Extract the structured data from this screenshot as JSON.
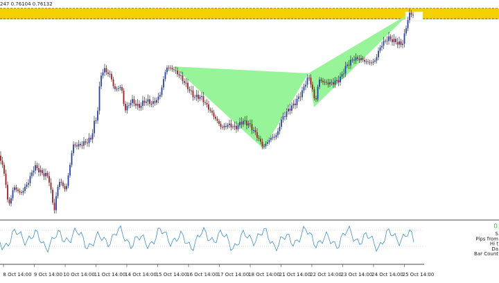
{
  "header": {
    "text": "247 0.76104 0.76132"
  },
  "x_axis": {
    "labels": [
      "8 Oct 14:00",
      "9 Oct 14:00",
      "10 Oct 14:00",
      "11 Oct 14:00",
      "14 Oct 14:00",
      "15 Oct 14:00",
      "16 Oct 14:00",
      "17 Oct 14:00",
      "18 Oct 14:00",
      "21 Oct 14:00",
      "22 Oct 14:00",
      "23 Oct 14:00",
      "24 Oct 14:00",
      "25 Oct 14:00"
    ]
  },
  "indicator_panel": {
    "value": "0",
    "labels": [
      "S",
      "Pips from",
      "Hi t",
      "Da",
      "Bar Count"
    ]
  }
}
